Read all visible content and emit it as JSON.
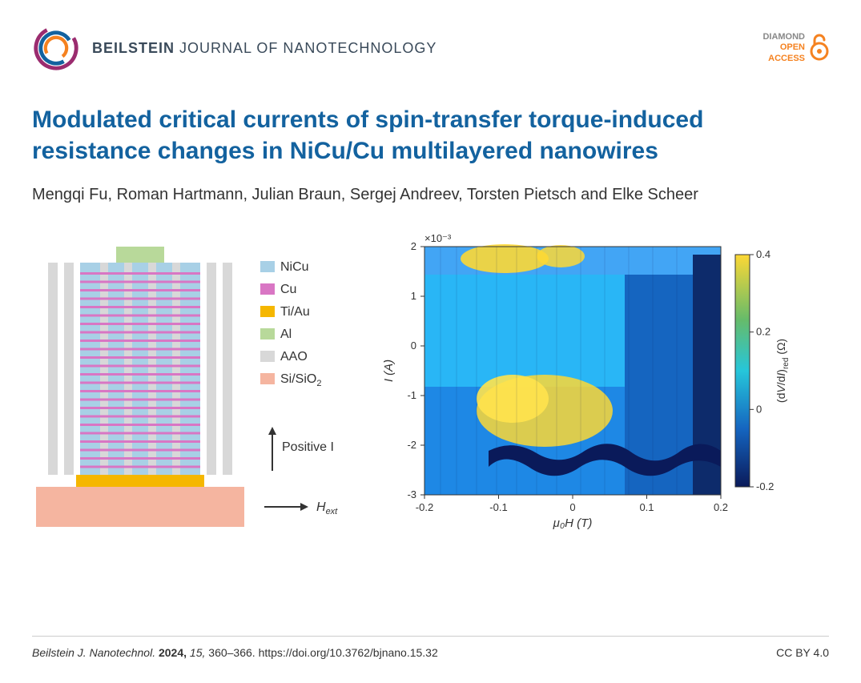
{
  "header": {
    "journal_bold": "BEILSTEIN",
    "journal_light": "JOURNAL OF NANOTECHNOLOGY",
    "logo_colors": {
      "outer": "#9b2c6f",
      "mid": "#13629f",
      "inner": "#f58220"
    },
    "open_access": {
      "line1": "DIAMOND",
      "line2": "OPEN",
      "line3": "ACCESS",
      "icon_color": "#f58220"
    }
  },
  "title": "Modulated critical currents of spin-transfer torque-induced resistance changes in NiCu/Cu multilayered nanowires",
  "authors": "Mengqi Fu, Roman Hartmann, Julian Braun, Sergej Andreev, Torsten Pietsch and Elke Scheer",
  "schematic": {
    "legend": [
      {
        "label": "NiCu",
        "color": "#a8d0e6"
      },
      {
        "label": "Cu",
        "color": "#d976c4"
      },
      {
        "label": "Ti/Au",
        "color": "#f5b700"
      },
      {
        "label": "Al",
        "color": "#b8d99a"
      },
      {
        "label": "AAO",
        "color": "#d8d8d8"
      },
      {
        "label": "Si/SiO",
        "sub": "2",
        "color": "#f5b5a0"
      }
    ],
    "arrows": {
      "positive_I": "Positive I",
      "H_ext": "H",
      "H_ext_sub": "ext"
    },
    "legend_fontsize": 16,
    "arrow_fontsize": 16
  },
  "heatmap": {
    "type": "heatmap",
    "xlabel": "μ₀H (T)",
    "ylabel": "I (A)",
    "colorbar_label": "(dV/dI)_red (Ω)",
    "scale_label": "×10⁻³",
    "xlim": [
      -0.2,
      0.2
    ],
    "ylim": [
      -3,
      2
    ],
    "xticks": [
      -0.2,
      -0.1,
      0,
      0.1,
      0.2
    ],
    "yticks": [
      -3,
      -2,
      -1,
      0,
      1,
      2
    ],
    "cbar_ticks": [
      -0.2,
      0,
      0.2,
      0.4
    ],
    "colormap": {
      "low": "#0a1a5a",
      "midlow": "#1565c0",
      "mid": "#26c6da",
      "midhigh": "#66bb6a",
      "high": "#fdd835"
    },
    "label_fontsize": 15,
    "tick_fontsize": 13
  },
  "footer": {
    "journal_abbrev": "Beilstein J. Nanotechnol.",
    "year": "2024,",
    "volume": "15,",
    "pages": "360–366.",
    "doi": "https://doi.org/10.3762/bjnano.15.32",
    "license": "CC BY 4.0"
  }
}
